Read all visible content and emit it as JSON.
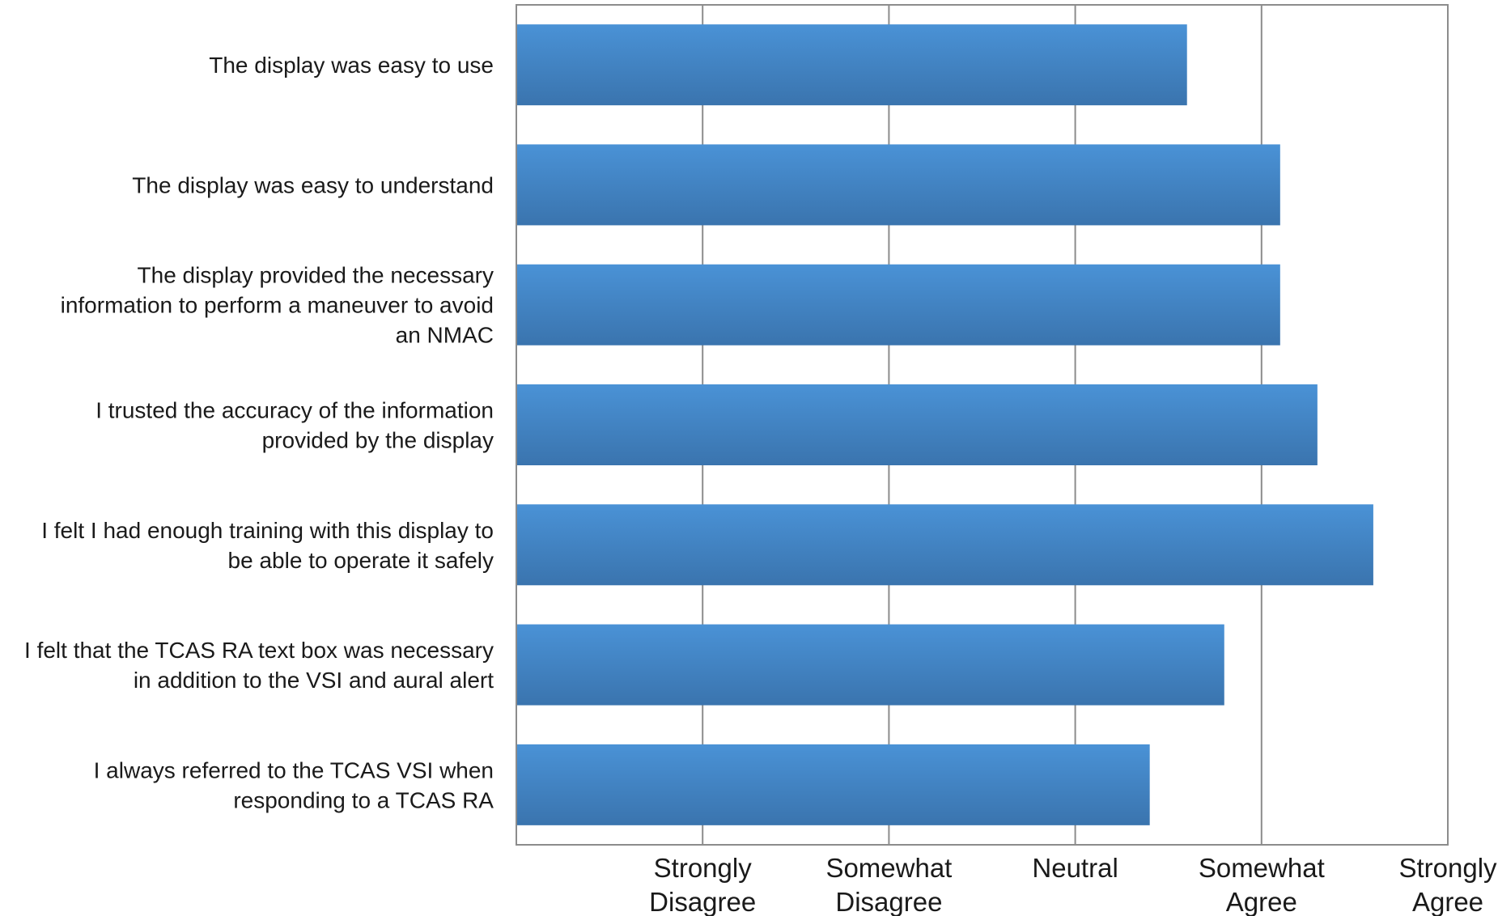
{
  "chart_data": {
    "type": "bar",
    "orientation": "horizontal",
    "categories": [
      [
        "The display was easy to use"
      ],
      [
        "The display was easy to understand"
      ],
      [
        "The display provided the necessary",
        "information to perform a maneuver to avoid",
        "an NMAC"
      ],
      [
        "I trusted the accuracy of the information",
        "provided by the display"
      ],
      [
        "I felt I had enough training with this display to",
        "be able to operate it safely"
      ],
      [
        "I felt that the TCAS RA text box was necessary",
        "in addition to the VSI and aural alert"
      ],
      [
        "I always referred to the TCAS VSI when",
        "responding to a TCAS RA"
      ]
    ],
    "values": [
      3.6,
      4.1,
      4.1,
      4.3,
      4.6,
      3.8,
      3.4
    ],
    "xlim": [
      0,
      5
    ],
    "ticks": [
      {
        "value": 1,
        "label": [
          "Strongly",
          "Disagree"
        ]
      },
      {
        "value": 2,
        "label": [
          "Somewhat",
          "Disagree"
        ]
      },
      {
        "value": 3,
        "label": [
          "Neutral"
        ]
      },
      {
        "value": 4,
        "label": [
          "Somewhat",
          "Agree"
        ]
      },
      {
        "value": 5,
        "label": [
          "Strongly",
          "Agree"
        ]
      }
    ],
    "grid": true,
    "legend": "none",
    "bar_color_top": "#4a92d6",
    "bar_color_bottom": "#3a74ae",
    "grid_color": "#8c8c8c"
  }
}
